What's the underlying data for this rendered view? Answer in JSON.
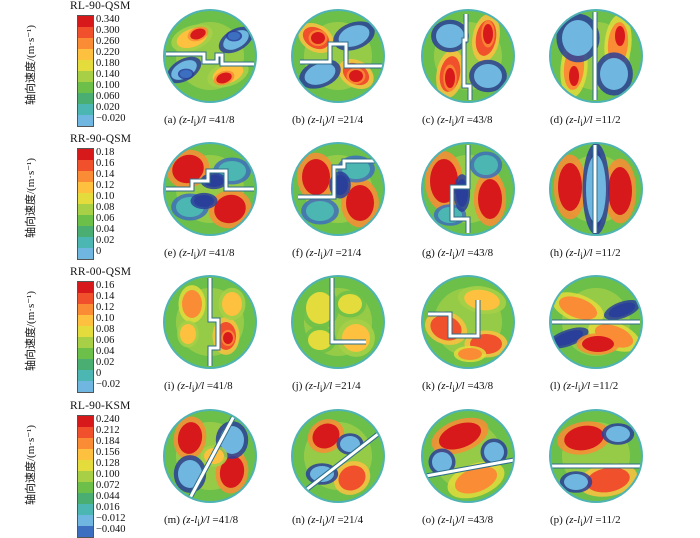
{
  "ylabel": "轴向速度/(m·s⁻¹)",
  "rows": [
    {
      "model": "RL-90-QSM",
      "ticks": [
        "0.340",
        "0.300",
        "0.260",
        "0.220",
        "0.180",
        "0.140",
        "0.100",
        "0.060",
        "0.020",
        "−0.020"
      ],
      "captions": [
        {
          "letter": "(a)",
          "value": "=41/8"
        },
        {
          "letter": "(b)",
          "value": "=21/4"
        },
        {
          "letter": "(c)",
          "value": "=43/8"
        },
        {
          "letter": "(d)",
          "value": "=11/2"
        }
      ]
    },
    {
      "model": "RR-90-QSM",
      "ticks": [
        "0.18",
        "0.16",
        "0.14",
        "0.12",
        "0.10",
        "0.08",
        "0.06",
        "0.04",
        "0.02",
        "0"
      ],
      "captions": [
        {
          "letter": "(e)",
          "value": "=41/8"
        },
        {
          "letter": "(f)",
          "value": "=21/4"
        },
        {
          "letter": "(g)",
          "value": "=43/8"
        },
        {
          "letter": "(h)",
          "value": "=11/2"
        }
      ]
    },
    {
      "model": "RR-00-QSM",
      "ticks": [
        "0.16",
        "0.14",
        "0.12",
        "0.10",
        "0.08",
        "0.06",
        "0.04",
        "0.02",
        "0",
        "−0.02"
      ],
      "captions": [
        {
          "letter": "(i)",
          "value": "=41/8"
        },
        {
          "letter": "(j)",
          "value": "=21/4"
        },
        {
          "letter": "(k)",
          "value": "=43/8"
        },
        {
          "letter": "(l)",
          "value": "=11/2"
        }
      ]
    },
    {
      "model": "RL-90-KSM",
      "ticks": [
        "0.240",
        "0.212",
        "0.184",
        "0.156",
        "0.128",
        "0.100",
        "0.072",
        "0.044",
        "0.016",
        "−0.012",
        "−0.040"
      ],
      "captions": [
        {
          "letter": "(m)",
          "value": "=41/8"
        },
        {
          "letter": "(n)",
          "value": "=21/4"
        },
        {
          "letter": "(o)",
          "value": "=43/8"
        },
        {
          "letter": "(p)",
          "value": "=11/2"
        }
      ]
    }
  ],
  "caption_var": "(z-l",
  "caption_sub": "i",
  "caption_tail": ")/l",
  "colors": {
    "scale": [
      "#d7191c",
      "#f0502c",
      "#fa8c35",
      "#fdc13f",
      "#e3dc3c",
      "#a8d046",
      "#6cc04a",
      "#4aad72",
      "#4cb7b2",
      "#6fb7e0",
      "#3d6fc0",
      "#2a3f9a"
    ],
    "disc_border": "#4fb3b3",
    "baffle": "#ffffff"
  }
}
